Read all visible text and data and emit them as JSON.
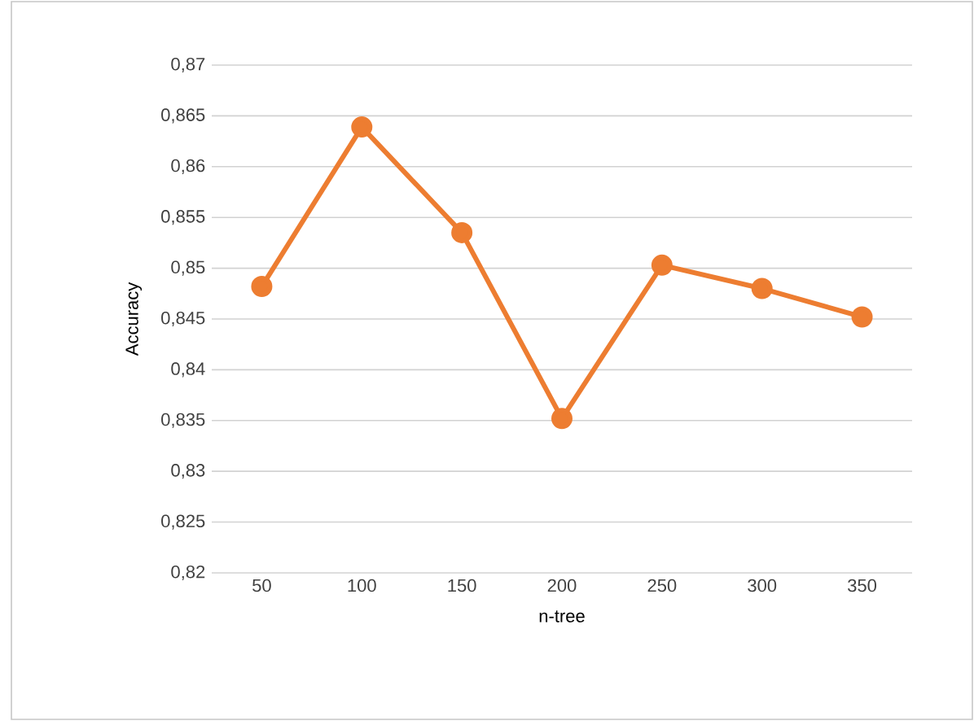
{
  "chart_data": {
    "type": "line",
    "xlabel": "n-tree",
    "ylabel": "Accuracy",
    "categories": [
      "50",
      "100",
      "150",
      "200",
      "250",
      "300",
      "350"
    ],
    "series": [
      {
        "color": "#ed7d31",
        "values": [
          0.8482,
          0.8639,
          0.8535,
          0.8352,
          0.8503,
          0.848,
          0.8452
        ]
      }
    ],
    "ylim": [
      0.82,
      0.87
    ],
    "yticks": [
      {
        "value": 0.82,
        "label": "0,82"
      },
      {
        "value": 0.825,
        "label": "0,825"
      },
      {
        "value": 0.83,
        "label": "0,83"
      },
      {
        "value": 0.835,
        "label": "0,835"
      },
      {
        "value": 0.84,
        "label": "0,84"
      },
      {
        "value": 0.845,
        "label": "0,845"
      },
      {
        "value": 0.85,
        "label": "0,85"
      },
      {
        "value": 0.855,
        "label": "0,855"
      },
      {
        "value": 0.86,
        "label": "0,86"
      },
      {
        "value": 0.865,
        "label": "0,865"
      },
      {
        "value": 0.87,
        "label": "0,87"
      }
    ],
    "grid": "y",
    "marker": "circle",
    "line_style": "solid"
  }
}
